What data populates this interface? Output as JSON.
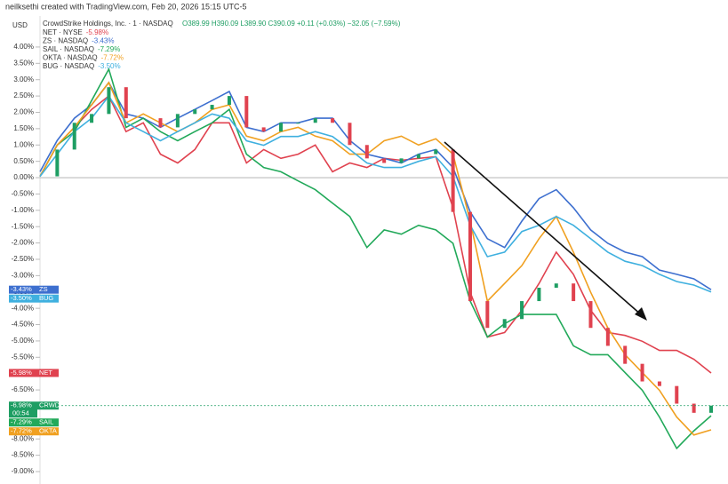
{
  "chart_data": {
    "type": "line",
    "credit": "neilksethi created with TradingView.com, Feb 20, 2026 15:15 UTC-5",
    "title": "CrowdStrike Holdings, Inc. · 1 · NASDAQ",
    "ohlc": "O389.99 H390.09 L389.90 C390.09 +0.11 (+0.03%) −32.05 (−7.59%)",
    "currency": "USD",
    "ylim": [
      -9.38,
      4.95
    ],
    "zero_line": true,
    "yticks": [
      {
        "value": 4,
        "label": "4.00%"
      },
      {
        "value": 3.5,
        "label": "3.50%"
      },
      {
        "value": 3,
        "label": "3.00%"
      },
      {
        "value": 2.5,
        "label": "2.50%"
      },
      {
        "value": 2,
        "label": "2.00%"
      },
      {
        "value": 1.5,
        "label": "1.50%"
      },
      {
        "value": 1,
        "label": "1.00%"
      },
      {
        "value": 0.5,
        "label": "0.50%"
      },
      {
        "value": 0,
        "label": "0.00%"
      },
      {
        "value": -0.5,
        "label": "-0.50%"
      },
      {
        "value": -1,
        "label": "-1.00%"
      },
      {
        "value": -1.5,
        "label": "-1.50%"
      },
      {
        "value": -2,
        "label": "-2.00%"
      },
      {
        "value": -2.5,
        "label": "-2.50%"
      },
      {
        "value": -3,
        "label": "-3.00%"
      },
      {
        "value": -3.5,
        "label": "-3.50%"
      },
      {
        "value": -4,
        "label": "-4.00%"
      },
      {
        "value": -4.5,
        "label": "-4.50%"
      },
      {
        "value": -5,
        "label": "-5.00%"
      },
      {
        "value": -5.5,
        "label": "-5.50%"
      },
      {
        "value": -6,
        "label": "-6.00%"
      },
      {
        "value": -6.5,
        "label": "-6.50%"
      },
      {
        "value": -7,
        "label": "-7.00%"
      },
      {
        "value": -7.5,
        "label": "-7.50%"
      },
      {
        "value": -8,
        "label": "-8.00%"
      },
      {
        "value": -8.5,
        "label": "-8.50%"
      },
      {
        "value": -9,
        "label": "-9.00%"
      }
    ],
    "series": [
      {
        "name": "NET",
        "legend": "NET · NYSE",
        "change": "-5.98%",
        "color": "#e0424f",
        "badge": {
          "value": -5.98,
          "label": "-5.98%"
        },
        "values": [
          0.04,
          1.0,
          1.54,
          2.09,
          2.5,
          1.41,
          1.68,
          0.72,
          0.45,
          0.86,
          1.68,
          1.68,
          0.45,
          0.86,
          0.59,
          0.72,
          1.0,
          0.18,
          0.45,
          0.31,
          0.59,
          0.53,
          0.59,
          0.64,
          -0.92,
          -3.51,
          -4.88,
          -4.74,
          -4.06,
          -3.24,
          -2.28,
          -2.96,
          -4.06,
          -4.74,
          -4.83,
          -5.01,
          -5.29,
          -5.29,
          -5.56,
          -5.98
        ]
      },
      {
        "name": "ZS",
        "legend": "ZS · NASDAQ",
        "change": "-3.43%",
        "color": "#3d6fcf",
        "badge": {
          "value": -3.43,
          "label": "-3.43%"
        },
        "values": [
          0.18,
          1.14,
          1.82,
          2.23,
          2.91,
          1.95,
          1.82,
          1.54,
          1.82,
          2.09,
          2.36,
          2.64,
          1.54,
          1.41,
          1.68,
          1.68,
          1.82,
          1.82,
          1.14,
          0.72,
          0.59,
          0.45,
          0.72,
          0.86,
          0.31,
          -1.05,
          -1.87,
          -2.14,
          -1.33,
          -0.64,
          -0.37,
          -0.92,
          -1.6,
          -2.01,
          -2.28,
          -2.42,
          -2.83,
          -2.96,
          -3.1,
          -3.43
        ]
      },
      {
        "name": "SAIL",
        "legend": "SAIL · NASDAQ",
        "change": "-7.29%",
        "color": "#22a95a",
        "badge": {
          "value": -7.29,
          "label": "-7.29%"
        },
        "values": [
          0.04,
          1.0,
          1.41,
          2.36,
          3.32,
          1.54,
          1.82,
          1.41,
          1.13,
          1.41,
          1.68,
          2.09,
          0.72,
          0.31,
          0.18,
          -0.1,
          -0.37,
          -0.78,
          -1.19,
          -2.14,
          -1.6,
          -1.73,
          -1.46,
          -1.6,
          -2.01,
          -3.78,
          -4.88,
          -4.47,
          -4.19,
          -4.19,
          -4.19,
          -5.15,
          -5.42,
          -5.42,
          -5.97,
          -6.51,
          -7.33,
          -8.29,
          -7.75,
          -7.29
        ]
      },
      {
        "name": "OKTA",
        "legend": "OKTA · NASDAQ",
        "change": "-7.72%",
        "color": "#f0a020",
        "badge": {
          "value": -7.72,
          "label": "-7.72%"
        },
        "values": [
          0.04,
          1.0,
          1.54,
          2.23,
          2.91,
          1.68,
          1.95,
          1.68,
          1.41,
          1.68,
          2.09,
          2.23,
          1.27,
          1.13,
          1.41,
          1.54,
          1.27,
          1.13,
          0.72,
          0.72,
          1.13,
          1.27,
          1.0,
          1.19,
          0.72,
          -1.33,
          -3.78,
          -3.24,
          -2.69,
          -1.87,
          -1.19,
          -2.28,
          -3.51,
          -4.6,
          -5.42,
          -5.97,
          -6.51,
          -7.33,
          -7.88,
          -7.72
        ]
      },
      {
        "name": "BUG",
        "legend": "BUG · NASDAQ",
        "change": "-3.50%",
        "color": "#3fb0df",
        "badge": {
          "value": -3.5,
          "label": "-3.50%"
        },
        "values": [
          0.04,
          0.72,
          1.41,
          1.82,
          2.5,
          1.68,
          1.41,
          1.13,
          1.41,
          1.68,
          1.95,
          1.82,
          1.13,
          0.99,
          1.26,
          1.26,
          1.41,
          1.26,
          0.86,
          0.45,
          0.31,
          0.31,
          0.5,
          0.64,
          0.04,
          -1.46,
          -2.42,
          -2.28,
          -1.65,
          -1.46,
          -1.19,
          -1.46,
          -1.87,
          -2.28,
          -2.56,
          -2.69,
          -2.96,
          -3.18,
          -3.29,
          -3.5
        ]
      },
      {
        "name": "CRWD",
        "color": "#1e9e63",
        "down_color": "#e0424f",
        "badge": {
          "value": -6.98,
          "label": "-6.98%",
          "countdown": "00:54"
        },
        "values": [
          0.04,
          0.86,
          1.68,
          1.95,
          2.77,
          1.82,
          1.82,
          1.54,
          1.95,
          2.09,
          2.23,
          2.5,
          1.54,
          1.41,
          1.68,
          1.68,
          1.82,
          1.68,
          1.0,
          0.59,
          0.45,
          0.59,
          0.72,
          0.86,
          -1.05,
          -3.78,
          -4.6,
          -4.33,
          -3.78,
          -3.37,
          -3.24,
          -3.78,
          -4.6,
          -5.15,
          -5.7,
          -6.24,
          -6.38,
          -6.92,
          -7.2,
          -6.98
        ]
      }
    ]
  }
}
